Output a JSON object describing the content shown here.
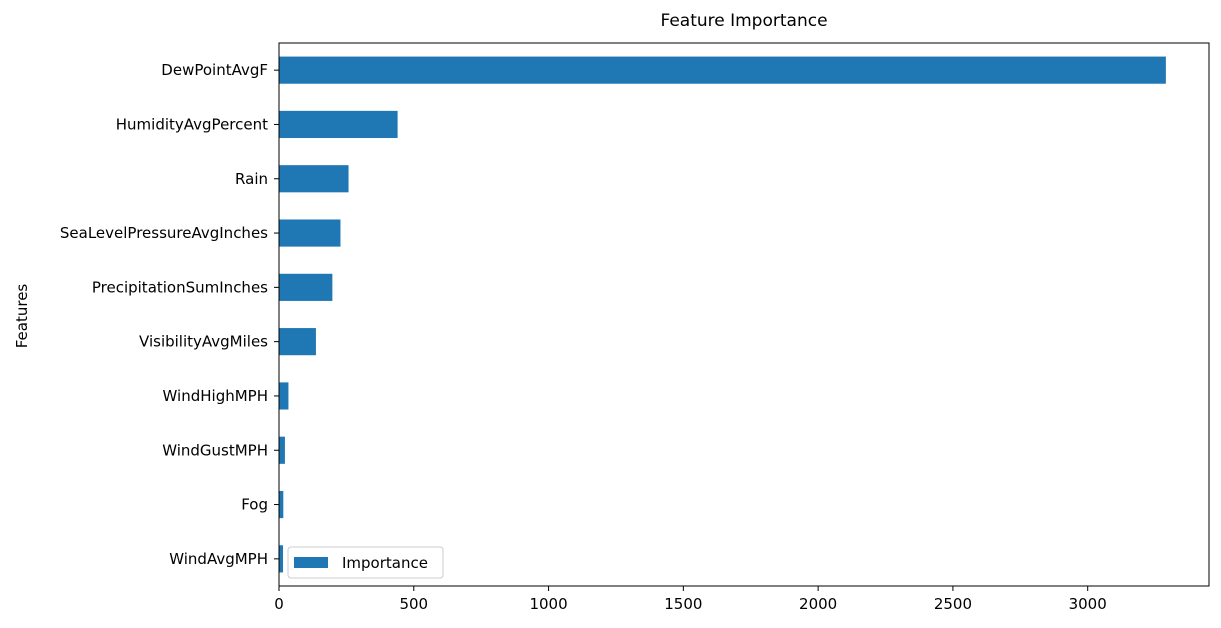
{
  "chart_data": {
    "type": "bar",
    "orientation": "horizontal",
    "title": "Feature Importance",
    "xlabel": "",
    "ylabel": "Features",
    "categories": [
      "DewPointAvgF",
      "HumidityAvgPercent",
      "Rain",
      "SeaLevelPressureAvgInches",
      "PrecipitationSumInches",
      "VisibilityAvgMiles",
      "WindHighMPH",
      "WindGustMPH",
      "Fog",
      "WindAvgMPH"
    ],
    "series": [
      {
        "name": "Importance",
        "color": "#1f77b4",
        "values": [
          3290,
          440,
          258,
          228,
          198,
          137,
          35,
          22,
          16,
          15
        ]
      }
    ],
    "xlim": [
      0,
      3450
    ],
    "xticks": [
      0,
      500,
      1000,
      1500,
      2000,
      2500,
      3000
    ],
    "grid": false,
    "legend_position": "lower-left"
  }
}
